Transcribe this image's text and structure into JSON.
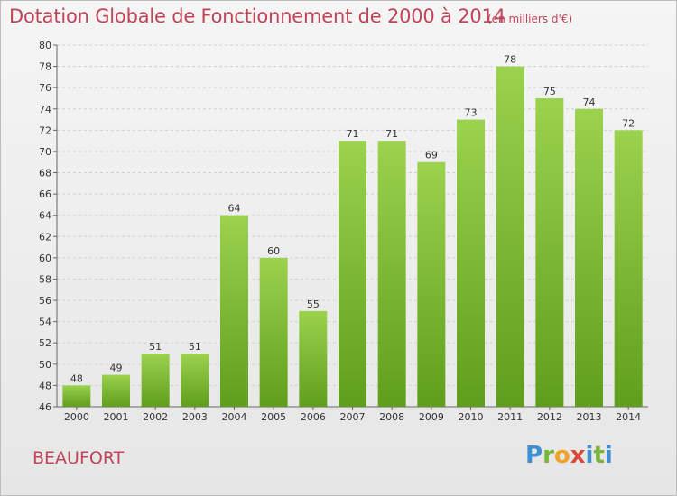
{
  "header": {
    "title": "Dotation Globale de Fonctionnement de 2000 à 2014",
    "unit": "(en milliers d'€)"
  },
  "footer": {
    "place": "BEAUFORT",
    "brand": "Proxiti"
  },
  "colors": {
    "title": "#c04458",
    "bar_top": "#9bd24e",
    "bar_bottom": "#5f9e1c"
  },
  "chart_data": {
    "type": "bar",
    "title": "Dotation Globale de Fonctionnement de 2000 à 2014",
    "subtitle": "(en milliers d'€)",
    "xlabel": "",
    "ylabel": "",
    "categories": [
      "2000",
      "2001",
      "2002",
      "2003",
      "2004",
      "2005",
      "2006",
      "2007",
      "2008",
      "2009",
      "2010",
      "2011",
      "2012",
      "2013",
      "2014"
    ],
    "values": [
      48,
      49,
      51,
      51,
      64,
      60,
      55,
      71,
      71,
      69,
      73,
      78,
      75,
      74,
      72
    ],
    "ylim": [
      46,
      80
    ],
    "yticks": [
      46,
      48,
      50,
      52,
      54,
      56,
      58,
      60,
      62,
      64,
      66,
      68,
      70,
      72,
      74,
      76,
      78,
      80
    ],
    "grid": true,
    "legend": "none"
  }
}
